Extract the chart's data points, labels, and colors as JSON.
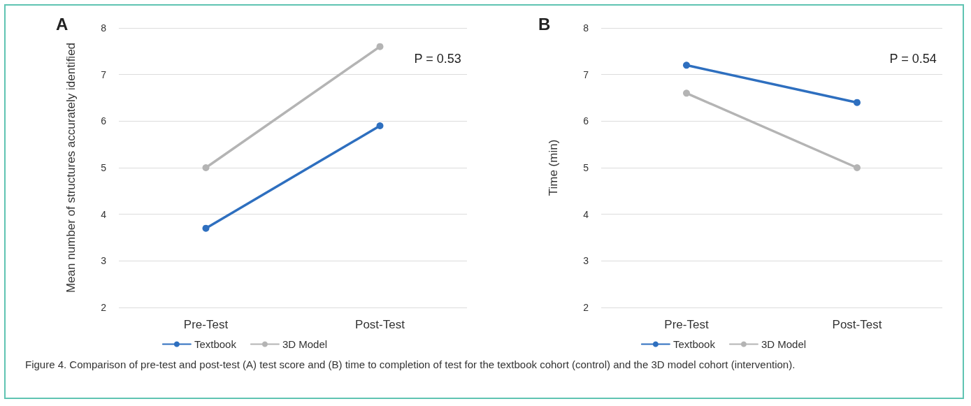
{
  "chart_data": [
    {
      "type": "line",
      "title": "A",
      "ylabel": "Mean number of structures accurately identified",
      "categories": [
        "Pre-Test",
        "Post-Test"
      ],
      "series": [
        {
          "name": "Textbook",
          "color": "#2e6fbf",
          "values": [
            3.7,
            5.9
          ]
        },
        {
          "name": "3D Model",
          "color": "#b4b4b4",
          "values": [
            5.0,
            7.6
          ]
        }
      ],
      "ylim": [
        2,
        8
      ],
      "yticks": [
        2,
        3,
        4,
        5,
        6,
        7,
        8
      ],
      "grid": "y",
      "legend": "bottom",
      "marker": "circle",
      "line_style": "solid",
      "annotations": [
        "P = 0.53",
        "Figure 4.  Comparison of pre-test and post-test (A) test score and (B) time to completion of test for the textbook cohort (control) and the 3D model cohort (intervention)."
      ]
    },
    {
      "type": "line",
      "title": "B",
      "ylabel": "Time (min)",
      "categories": [
        "Pre-Test",
        "Post-Test"
      ],
      "series": [
        {
          "name": "Textbook",
          "color": "#2e6fbf",
          "values": [
            7.2,
            6.4
          ]
        },
        {
          "name": "3D Model",
          "color": "#b4b4b4",
          "values": [
            6.6,
            5.0
          ]
        }
      ],
      "ylim": [
        2,
        8
      ],
      "yticks": [
        2,
        3,
        4,
        5,
        6,
        7,
        8
      ],
      "grid": "y",
      "legend": "bottom",
      "marker": "circle",
      "line_style": "solid",
      "annotations": [
        "P = 0.54"
      ]
    }
  ]
}
